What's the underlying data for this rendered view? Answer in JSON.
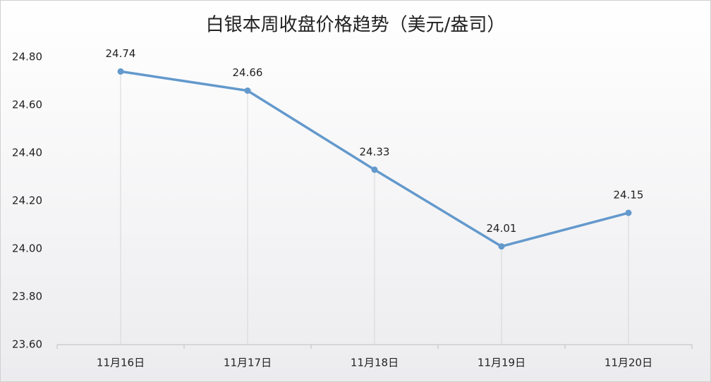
{
  "chart_data": {
    "type": "line",
    "title": "白银本周收盘价格趋势（美元/盎司）",
    "categories": [
      "11月16日",
      "11月17日",
      "11月18日",
      "11月19日",
      "11月20日"
    ],
    "values": [
      24.74,
      24.66,
      24.33,
      24.01,
      24.15
    ],
    "color": "#6399cc",
    "ylim": [
      23.6,
      24.8
    ],
    "yticks": [
      {
        "value": 23.6,
        "label": "23.60"
      },
      {
        "value": 23.8,
        "label": "23.80"
      },
      {
        "value": 24.0,
        "label": "24.00"
      },
      {
        "value": 24.2,
        "label": "24.20"
      },
      {
        "value": 24.4,
        "label": "24.40"
      },
      {
        "value": 24.6,
        "label": "24.60"
      },
      {
        "value": 24.8,
        "label": "24.80"
      }
    ],
    "grid": false,
    "drop_lines": true
  }
}
